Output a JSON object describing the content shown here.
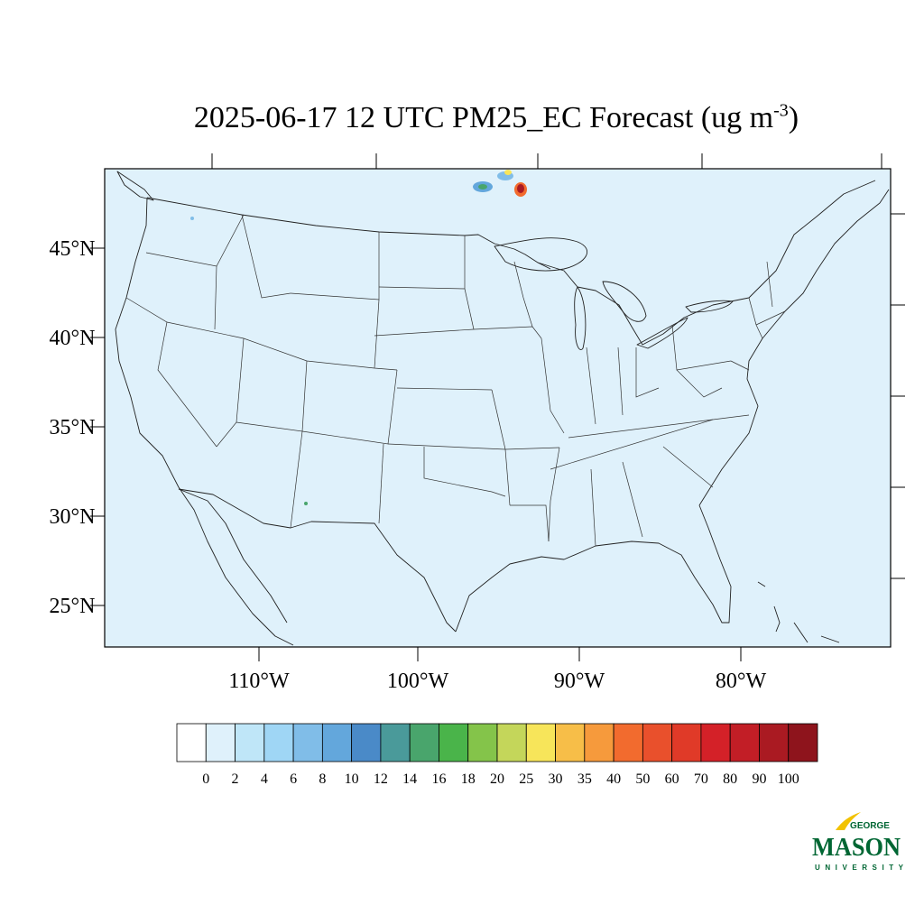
{
  "title": {
    "main": "2025-06-17 12 UTC PM25_EC Forecast (ug m",
    "superscript": "-3",
    "close": ")"
  },
  "map": {
    "background_color": "#dff1fb",
    "lat_labels": [
      "45°N",
      "40°N",
      "35°N",
      "30°N",
      "25°N"
    ],
    "lon_labels": [
      "110°W",
      "100°W",
      "90°W",
      "80°W"
    ]
  },
  "colorbar": {
    "colors": [
      "#ffffff",
      "#dff1fb",
      "#bfe6f8",
      "#9fd6f5",
      "#80bde8",
      "#63a7dc",
      "#4a8ac8",
      "#4a9a9a",
      "#49a56c",
      "#4ab44a",
      "#84c44a",
      "#c4d65a",
      "#f7e55a",
      "#f7be48",
      "#f69a3c",
      "#f26b2e",
      "#e9502c",
      "#e03a28",
      "#d42128",
      "#c21e26",
      "#aa1a22",
      "#8e141c"
    ],
    "labels": [
      "0",
      "2",
      "4",
      "6",
      "8",
      "10",
      "12",
      "14",
      "16",
      "18",
      "20",
      "25",
      "30",
      "35",
      "40",
      "50",
      "60",
      "70",
      "80",
      "90",
      "100"
    ]
  },
  "logo": {
    "line1": "GEORGE",
    "line2": "MASON",
    "line3": "UNIVERSITY"
  }
}
